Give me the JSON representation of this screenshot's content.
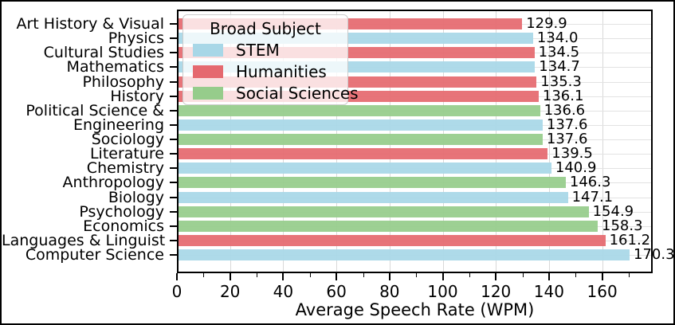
{
  "chart_data": {
    "type": "bar",
    "orientation": "horizontal",
    "xlabel": "Average Speech Rate (WPM)",
    "ylabel": "",
    "xlim": [
      0,
      179
    ],
    "grid": true,
    "x_major_ticks": [
      0,
      20,
      40,
      60,
      80,
      100,
      120,
      140,
      160
    ],
    "x_major_tick_labels": [
      "0",
      "20",
      "40",
      "60",
      "80",
      "100",
      "120",
      "140",
      "160"
    ],
    "x_minor_ticks": [
      10,
      30,
      50,
      70,
      90,
      110,
      130,
      150,
      170
    ],
    "categories": [
      "Art History & Visual",
      "Physics",
      "Cultural Studies",
      "Mathematics",
      "Philosophy",
      "History",
      "Political Science &",
      "Engineering",
      "Sociology",
      "Literature",
      "Chemistry",
      "Anthropology",
      "Biology",
      "Psychology",
      "Economics",
      "Languages & Linguist",
      "Computer Science"
    ],
    "values": [
      129.9,
      134.0,
      134.5,
      134.7,
      135.3,
      136.1,
      136.6,
      137.6,
      137.6,
      139.5,
      140.9,
      146.3,
      147.1,
      154.9,
      158.3,
      161.2,
      170.3
    ],
    "value_labels": [
      "129.9",
      "134.0",
      "134.5",
      "134.7",
      "135.3",
      "136.1",
      "136.6",
      "137.6",
      "137.6",
      "139.5",
      "140.9",
      "146.3",
      "147.1",
      "154.9",
      "158.3",
      "161.2",
      "170.3"
    ],
    "groups": [
      "Humanities",
      "STEM",
      "Humanities",
      "STEM",
      "Humanities",
      "Humanities",
      "Social Sciences",
      "STEM",
      "Social Sciences",
      "Humanities",
      "STEM",
      "Social Sciences",
      "STEM",
      "Social Sciences",
      "Social Sciences",
      "Humanities",
      "STEM"
    ],
    "group_colors": {
      "STEM": "#A8D7E7",
      "Humanities": "#E5696F",
      "Social Sciences": "#96CC8B"
    },
    "legend": {
      "title": "Broad Subject",
      "position": "upper-left",
      "entries": [
        {
          "label": "STEM",
          "color": "#A8D7E7"
        },
        {
          "label": "Humanities",
          "color": "#E5696F"
        },
        {
          "label": "Social Sciences",
          "color": "#96CC8B"
        }
      ]
    }
  }
}
